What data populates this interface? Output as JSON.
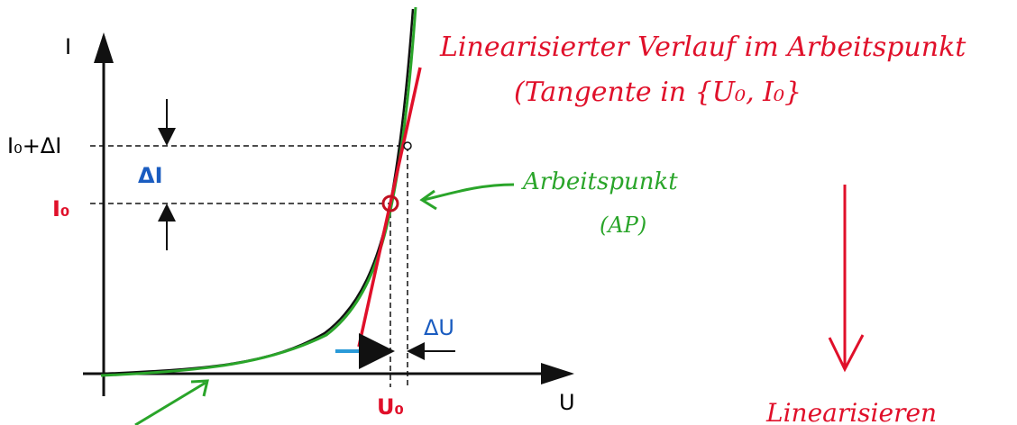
{
  "axes": {
    "y_label": "I",
    "x_label": "U"
  },
  "labels": {
    "i0_plus_di": "I₀+ΔI",
    "delta_i": "ΔI",
    "i0": "I₀",
    "delta_u": "ΔU",
    "u0": "U₀"
  },
  "annotations": {
    "linearized_line1": "Linearisierter Verlauf im Arbeitspunkt",
    "linearized_line2": "(Tangente in {U₀, I₀}",
    "operating_point": "Arbeitspunkt",
    "operating_point_abbr": "(AP)",
    "linearize": "Linearisieren"
  }
}
